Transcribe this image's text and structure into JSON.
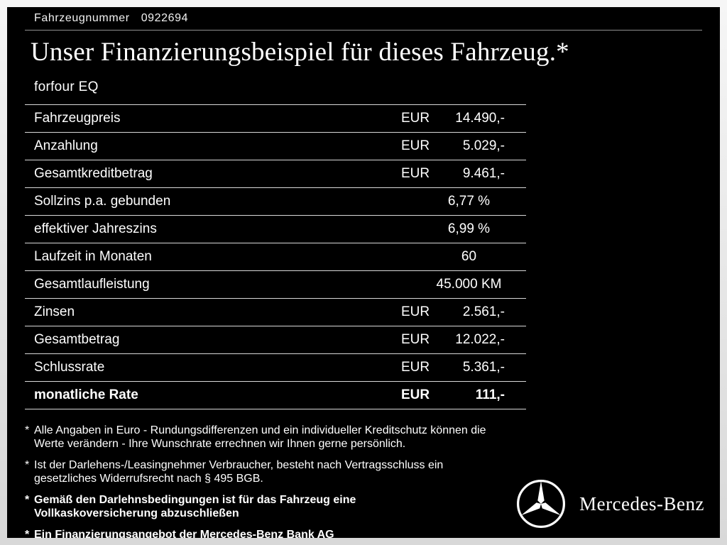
{
  "header": {
    "vehicle_number_label": "Fahrzeugnummer",
    "vehicle_number": "0922694",
    "title": "Unser Finanzierungsbeispiel für dieses Fahrzeug.*",
    "model": "forfour EQ"
  },
  "table": {
    "rows": [
      {
        "label": "Fahrzeugpreis",
        "currency": "EUR",
        "value": "14.490,-",
        "bold": false
      },
      {
        "label": "Anzahlung",
        "currency": "EUR",
        "value": "5.029,-",
        "bold": false
      },
      {
        "label": "Gesamtkreditbetrag",
        "currency": "EUR",
        "value": "9.461,-",
        "bold": false
      },
      {
        "label": "Sollzins p.a. gebunden",
        "currency": "",
        "value": "6,77 %",
        "bold": false
      },
      {
        "label": "effektiver Jahreszins",
        "currency": "",
        "value": "6,99 %",
        "bold": false
      },
      {
        "label": "Laufzeit in Monaten",
        "currency": "",
        "value": "60",
        "bold": false
      },
      {
        "label": "Gesamtlaufleistung",
        "currency": "",
        "value": "45.000 KM",
        "bold": false
      },
      {
        "label": "Zinsen",
        "currency": "EUR",
        "value": "2.561,-",
        "bold": false
      },
      {
        "label": "Gesamtbetrag",
        "currency": "EUR",
        "value": "12.022,-",
        "bold": false
      },
      {
        "label": "Schlussrate",
        "currency": "EUR",
        "value": "5.361,-",
        "bold": false
      },
      {
        "label": "monatliche Rate",
        "currency": "EUR",
        "value": "111,-",
        "bold": true
      }
    ]
  },
  "footnotes": [
    {
      "bold": false,
      "lines": [
        "Alle Angaben in Euro - Rundungsdifferenzen und ein individueller Kreditschutz können die",
        "Werte verändern - Ihre Wunschrate errechnen wir Ihnen gerne persönlich."
      ]
    },
    {
      "bold": false,
      "lines": [
        "Ist der Darlehens-/Leasingnehmer Verbraucher, besteht nach Vertragsschluss ein",
        "gesetzliches Widerrufsrecht nach § 495 BGB."
      ]
    },
    {
      "bold": true,
      "lines": [
        "Gemäß den Darlehnsbedingungen ist für das Fahrzeug eine",
        "Vollkaskoversicherung abzuschließen"
      ]
    },
    {
      "bold": true,
      "lines": [
        "Ein Finanzierungsangebot der Mercedes-Benz Bank AG"
      ]
    }
  ],
  "brand": {
    "name": "Mercedes-Benz",
    "logo": "mercedes-star-icon"
  },
  "colors": {
    "background": "#000000",
    "text": "#ffffff",
    "divider": "#d9d9d9",
    "frame": "#e8e8e8"
  }
}
